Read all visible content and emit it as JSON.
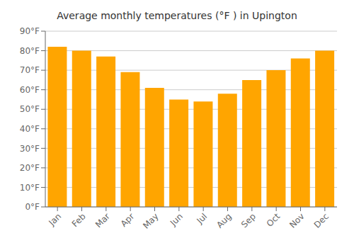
{
  "chart_data": {
    "type": "bar",
    "title": "Average monthly temperatures (°F ) in Upington",
    "categories": [
      "Jan",
      "Feb",
      "Mar",
      "Apr",
      "May",
      "Jun",
      "Jul",
      "Aug",
      "Sep",
      "Oct",
      "Nov",
      "Dec"
    ],
    "values": [
      82,
      80,
      77,
      69,
      61,
      55,
      54,
      58,
      65,
      70,
      76,
      80
    ],
    "color": "#FFA500",
    "ylim": [
      0,
      90
    ],
    "yticks": [
      {
        "value": 0,
        "label": "0°F"
      },
      {
        "value": 10,
        "label": "10°F"
      },
      {
        "value": 20,
        "label": "20°F"
      },
      {
        "value": 30,
        "label": "30°F"
      },
      {
        "value": 40,
        "label": "40°F"
      },
      {
        "value": 50,
        "label": "50°F"
      },
      {
        "value": 60,
        "label": "60°F"
      },
      {
        "value": 70,
        "label": "70°F"
      },
      {
        "value": 80,
        "label": "80°F"
      },
      {
        "value": 90,
        "label": "90°F"
      }
    ],
    "grid": true
  }
}
